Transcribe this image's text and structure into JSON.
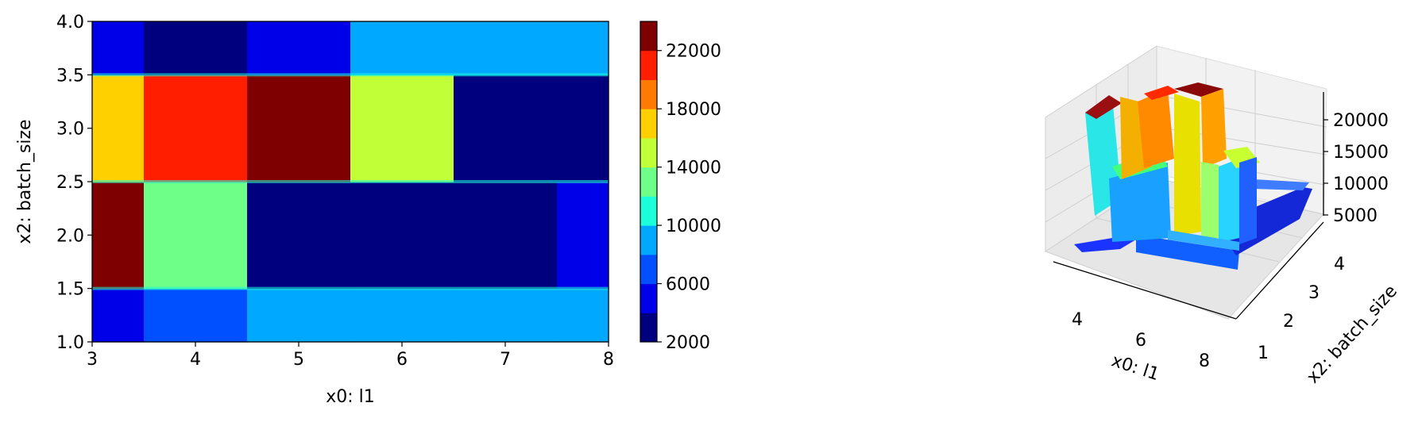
{
  "chart_data": [
    {
      "type": "heatmap",
      "subtype": "filled-contour",
      "title": "",
      "xlabel": "x0: l1",
      "ylabel": "x2: batch_size",
      "xlim": [
        3,
        8
      ],
      "ylim": [
        1.0,
        4.0
      ],
      "x_ticks": [
        "3",
        "4",
        "5",
        "6",
        "7",
        "8"
      ],
      "y_ticks": [
        "1.0",
        "1.5",
        "2.0",
        "2.5",
        "3.0",
        "3.5",
        "4.0"
      ],
      "x_cell_edges": [
        3,
        3.5,
        4.5,
        5.5,
        6.5,
        7.5,
        8
      ],
      "y_cell_edges": [
        1.0,
        1.5,
        2.5,
        3.5,
        4.0
      ],
      "z_grid_rows_bottom_to_top": [
        [
          5000,
          7000,
          9000,
          9000,
          9000,
          9000
        ],
        [
          23000,
          13000,
          2000,
          2000,
          2000,
          5000
        ],
        [
          17000,
          21000,
          23000,
          15000,
          2000,
          2000
        ],
        [
          5000,
          3000,
          5000,
          9000,
          9000,
          9000
        ]
      ],
      "colorbar": {
        "levels": [
          2000,
          4000,
          6000,
          8000,
          10000,
          12000,
          14000,
          16000,
          18000,
          20000,
          22000,
          24000
        ],
        "colors": [
          "#00007f",
          "#0000e8",
          "#0050ff",
          "#00a8ff",
          "#1cffdb",
          "#6eff89",
          "#c1ff36",
          "#ffd000",
          "#ff7a00",
          "#ff1e00",
          "#7f0000"
        ],
        "tick_labels": [
          "2000",
          "6000",
          "10000",
          "14000",
          "18000",
          "22000"
        ]
      }
    },
    {
      "type": "surface-3d",
      "title": "",
      "xlabel": "x0: l1",
      "ylabel": "x2: batch_size",
      "zlabel": "",
      "x_ticks": [
        "4",
        "6",
        "8"
      ],
      "y_ticks": [
        "1",
        "2",
        "3",
        "4"
      ],
      "z_ticks": [
        "5000",
        "10000",
        "15000",
        "20000"
      ],
      "note_same_data_as": "filled-contour"
    }
  ]
}
